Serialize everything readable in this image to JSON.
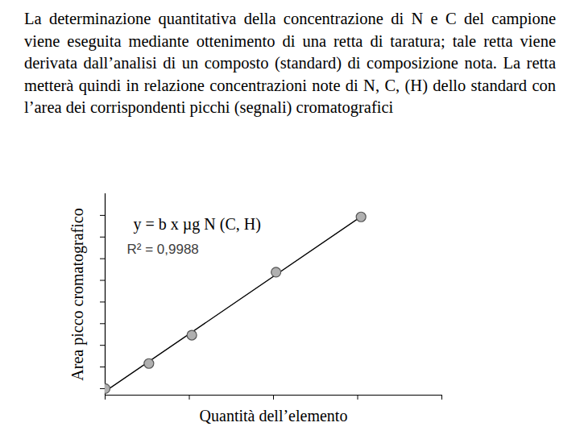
{
  "chart_data": {
    "type": "scatter",
    "title": "La determinazione quantitativa della concentrazione di N e C del campione viene eseguita mediante ottenimento di una retta di taratura; tale retta viene derivata dall’analisi di un composto (standard) di composizione nota. La retta metterà quindi in relazione concentrazioni note di N, C, (H) dello standard con l’area dei corrispondenti picchi (segnali) cromatografici",
    "x_label": "Quantità dell’elemento",
    "y_label": "Area picco cromatografico",
    "x": [
      0,
      0.52,
      1.03,
      2.03,
      3.04
    ],
    "values": [
      0,
      1.16,
      2.47,
      5.38,
      7.93
    ],
    "xlim": [
      0,
      4
    ],
    "ylim": [
      -0.3,
      9
    ],
    "xticks": [
      0,
      1,
      2,
      3,
      4
    ],
    "yticks": [
      0,
      1,
      2,
      3,
      4,
      5,
      6,
      7,
      8
    ],
    "tick_labels": false,
    "grid": false,
    "color": "#b0b0b0",
    "marker": "circle",
    "line_style": "solid",
    "annotations": [
      "y = b x µg N (C, H)",
      "R² = 0,9988"
    ]
  }
}
